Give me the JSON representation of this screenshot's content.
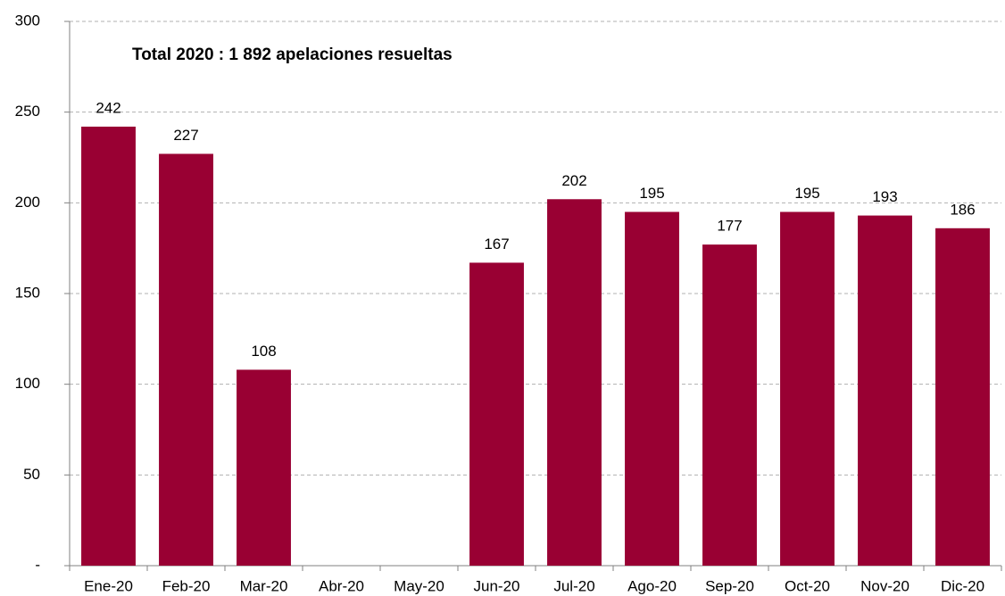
{
  "chart_data": {
    "type": "bar",
    "annotation": "Total 2020 : 1 892 apelaciones resueltas",
    "categories": [
      "Ene-20",
      "Feb-20",
      "Mar-20",
      "Abr-20",
      "May-20",
      "Jun-20",
      "Jul-20",
      "Ago-20",
      "Sep-20",
      "Oct-20",
      "Nov-20",
      "Dic-20"
    ],
    "values": [
      242,
      227,
      108,
      null,
      null,
      167,
      202,
      195,
      177,
      195,
      193,
      186
    ],
    "color": "#990033",
    "ylim": [
      0,
      300
    ],
    "yticks": [
      {
        "value": 0,
        "label": "-"
      },
      50,
      100,
      150,
      200,
      250,
      300
    ],
    "grid": true
  }
}
